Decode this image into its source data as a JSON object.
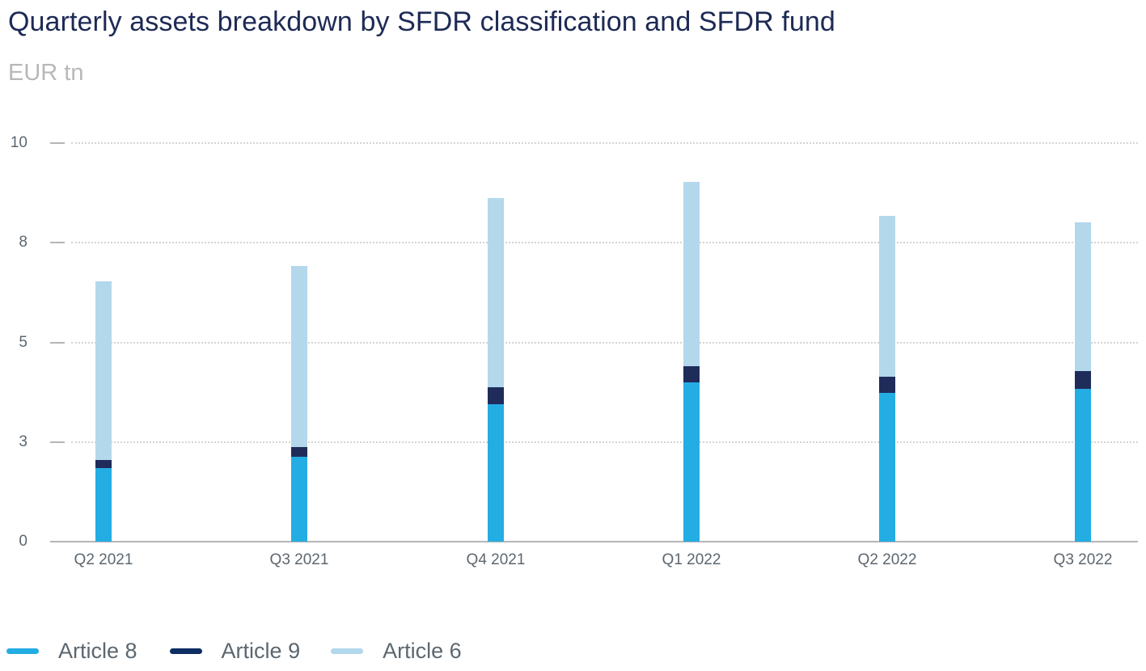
{
  "title": "Quarterly assets breakdown by SFDR classification and SFDR fund",
  "subtitle": "EUR tn",
  "colors": {
    "article_8": "#24ade3",
    "article_9": "#1f2c5a",
    "article_6": "#b3d8ec",
    "legend_article_9": "#0e2d62"
  },
  "legend": [
    {
      "label": "Article 8",
      "color": "#24ade3"
    },
    {
      "label": "Article 9",
      "color": "#0e2d62"
    },
    {
      "label": "Article 6",
      "color": "#b3d8ec"
    }
  ],
  "y_axis": {
    "ticks": [
      {
        "value": 0,
        "label": "0"
      },
      {
        "value": 2.5,
        "label": "3"
      },
      {
        "value": 5,
        "label": "5"
      },
      {
        "value": 7.5,
        "label": "8"
      },
      {
        "value": 10,
        "label": "10"
      }
    ]
  },
  "x_axis": {
    "labels": [
      "Q2 2021",
      "Q3 2021",
      "Q4 2021",
      "Q1 2022",
      "Q2 2022",
      "Q3 2022"
    ]
  },
  "chart_data": {
    "type": "bar",
    "stacked": true,
    "title": "Quarterly assets breakdown by SFDR classification and SFDR fund",
    "subtitle": "EUR tn",
    "xlabel": "",
    "ylabel": "EUR tn",
    "ylim": [
      0,
      10
    ],
    "yticks": [
      0,
      2.5,
      5,
      7.5,
      10
    ],
    "ytick_labels": [
      "0",
      "3",
      "5",
      "8",
      "10"
    ],
    "grid": true,
    "legend_position": "bottom-left",
    "categories": [
      "Q2 2021",
      "Q3 2021",
      "Q4 2021",
      "Q1 2022",
      "Q2 2022",
      "Q3 2022"
    ],
    "series": [
      {
        "name": "Article 8",
        "color": "#24ade3",
        "values": [
          1.85,
          2.13,
          3.45,
          4.0,
          3.73,
          3.83
        ]
      },
      {
        "name": "Article 9",
        "color": "#1f2c5a",
        "values": [
          0.2,
          0.24,
          0.43,
          0.41,
          0.41,
          0.45
        ]
      },
      {
        "name": "Article 6",
        "color": "#b3d8ec",
        "values": [
          4.48,
          4.54,
          4.75,
          4.62,
          4.04,
          3.73
        ]
      }
    ],
    "totals": [
      6.53,
      6.91,
      8.63,
      9.03,
      8.18,
      8.01
    ]
  }
}
